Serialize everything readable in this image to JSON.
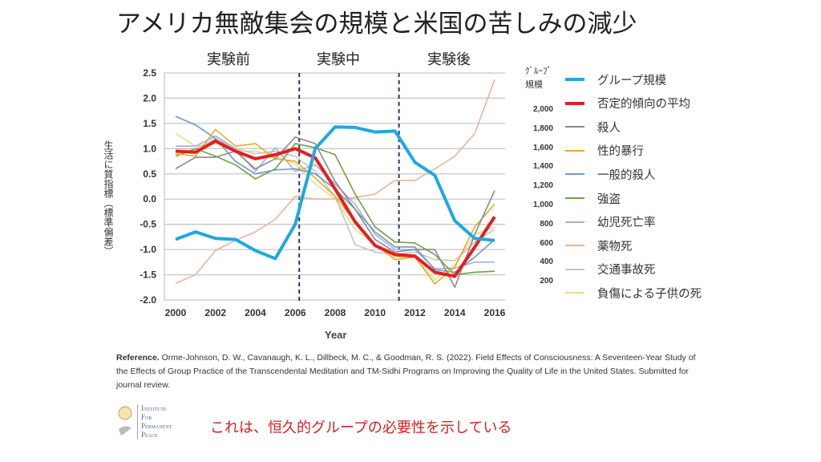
{
  "title": "アメリカ無敵集会の規模と米国の苦しみの減少",
  "periods": [
    "実験前",
    "実験中",
    "実験後"
  ],
  "chart_data": {
    "type": "line",
    "xlabel": "Year",
    "ylabel": "生活に質指標（標準偏差）",
    "ylim": [
      -2.0,
      2.5
    ],
    "xlim": [
      2000,
      2016
    ],
    "yticks": [
      "2.5",
      "2.0",
      "1.5",
      "1.0",
      "0.5",
      "0.0",
      "-0.5",
      "-1.0",
      "-1.5",
      "-2.0"
    ],
    "xticks": [
      "2000",
      "2002",
      "2004",
      "2006",
      "2008",
      "2010",
      "2012",
      "2014",
      "2016"
    ],
    "right_axis_label": [
      "ｸﾞﾙｰﾌﾞ",
      "規模"
    ],
    "right_ticks": [
      "2,000",
      "1,800",
      "1,600",
      "1,400",
      "1,200",
      "1,000",
      "800",
      "600",
      "400",
      "200"
    ],
    "grid": true,
    "legend_position": "right",
    "period_dividers": [
      2006.2,
      2011.2
    ],
    "x": [
      2000,
      2001,
      2002,
      2003,
      2004,
      2005,
      2006,
      2007,
      2008,
      2009,
      2010,
      2011,
      2012,
      2013,
      2014,
      2015,
      2016
    ],
    "series": [
      {
        "name": "グループ規模",
        "color": "#1fa8e0",
        "width": 4,
        "values": [
          -0.8,
          -0.65,
          -0.78,
          -0.8,
          -1.02,
          -1.18,
          -0.5,
          1.0,
          1.43,
          1.42,
          1.33,
          1.35,
          0.73,
          0.47,
          -0.43,
          -0.78,
          -0.82
        ]
      },
      {
        "name": "否定的傾向の平均",
        "color": "#e41e1e",
        "width": 4,
        "values": [
          0.95,
          0.93,
          1.15,
          0.95,
          0.8,
          0.88,
          1.0,
          0.82,
          0.2,
          -0.45,
          -0.92,
          -1.1,
          -1.13,
          -1.45,
          -1.53,
          -0.95,
          -0.35
        ]
      },
      {
        "name": "殺人",
        "color": "#8a8a8a",
        "width": 1.6,
        "values": [
          0.6,
          0.83,
          0.83,
          0.95,
          0.6,
          0.8,
          1.23,
          1.1,
          0.35,
          -0.2,
          -0.8,
          -1.05,
          -1.0,
          -1.0,
          -1.75,
          -0.7,
          0.17
        ]
      },
      {
        "name": "性的暴行",
        "color": "#e0b020",
        "width": 1.6,
        "values": [
          0.9,
          0.85,
          1.38,
          1.05,
          1.1,
          0.8,
          0.75,
          0.42,
          0.05,
          -0.45,
          -0.9,
          -1.2,
          -1.15,
          -1.68,
          -1.35,
          -0.55,
          -0.1
        ]
      },
      {
        "name": "一般的殺人",
        "color": "#6f97c8",
        "width": 1.6,
        "values": [
          1.64,
          1.47,
          1.2,
          0.75,
          0.5,
          0.58,
          0.6,
          0.5,
          0.2,
          -0.2,
          -0.65,
          -0.95,
          -0.95,
          -1.4,
          -1.45,
          -1.15,
          -0.8
        ]
      },
      {
        "name": "強盗",
        "color": "#72a04a",
        "width": 1.6,
        "values": [
          0.85,
          1.0,
          0.85,
          0.68,
          0.4,
          0.6,
          1.1,
          1.02,
          0.88,
          0.1,
          -0.55,
          -0.85,
          -0.87,
          -1.1,
          -1.5,
          -1.45,
          -1.43
        ]
      },
      {
        "name": "幼児死亡率",
        "color": "#a5b0dc",
        "width": 1.6,
        "values": [
          1.05,
          1.05,
          1.25,
          1.0,
          0.55,
          1.02,
          0.55,
          0.68,
          0.3,
          -0.1,
          -0.7,
          -1.0,
          -1.0,
          -1.38,
          -1.37,
          -1.25,
          -1.25
        ]
      },
      {
        "name": "薬物死",
        "color": "#e8b49a",
        "width": 1.6,
        "values": [
          -1.67,
          -1.5,
          -1.02,
          -0.82,
          -0.65,
          -0.4,
          0.05,
          0.0,
          0.0,
          0.03,
          0.1,
          0.37,
          0.37,
          0.6,
          0.85,
          1.3,
          2.37
        ]
      },
      {
        "name": "交通事故死",
        "color": "#c4c4c4",
        "width": 1.6,
        "values": [
          1.0,
          1.0,
          1.2,
          1.0,
          0.9,
          0.95,
          0.85,
          0.55,
          0.05,
          -0.9,
          -1.05,
          -1.1,
          -1.05,
          -1.2,
          -1.22,
          -0.85,
          -0.6
        ]
      },
      {
        "name": "負傷による子供の死",
        "color": "#f2d98c",
        "width": 1.6,
        "values": [
          1.3,
          1.05,
          1.1,
          0.95,
          0.95,
          0.85,
          0.7,
          0.3,
          0.0,
          -0.6,
          -0.9,
          -1.15,
          -1.15,
          -1.6,
          -1.3,
          -0.7,
          -0.55
        ]
      }
    ]
  },
  "reference": {
    "label": "Reference.",
    "text": " Orme-Johnson, D. W., Cavanaugh, K. L., Dillbeck, M. C., & Goodman, R. S. (2022). Field Effects of Consciousness: A Seventeen-Year  Study of the Effects of Group Practice of the Transcendental Meditation and TM-Sidhi Programs on Improving the Quality of Life in the United States. Submitted for journal review."
  },
  "logo": [
    "Institute",
    "For",
    "Permanent",
    "Peace"
  ],
  "conclusion": "これは、恒久的グループの必要性を示している"
}
